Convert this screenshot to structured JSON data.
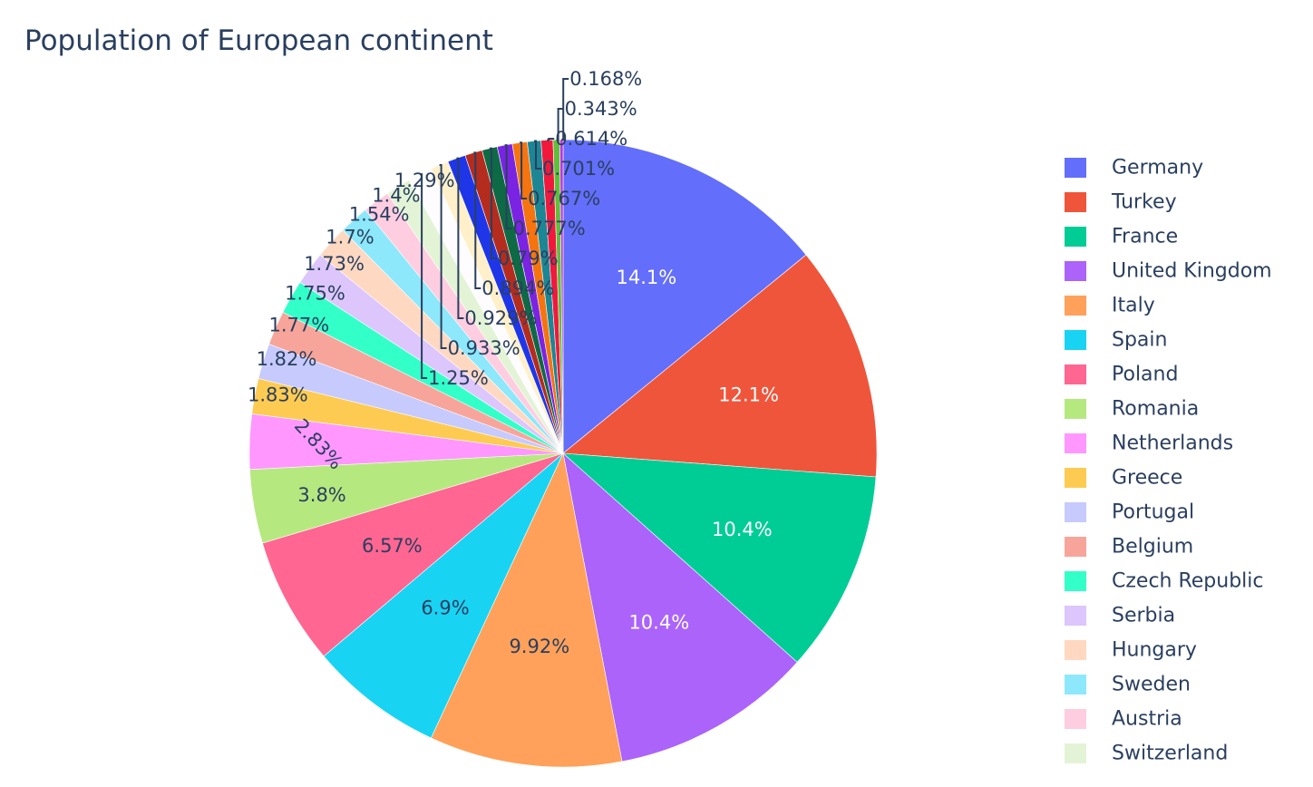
{
  "chart_data": {
    "type": "pie",
    "title": "Population of European continent",
    "sort_by_value": true,
    "slices": [
      {
        "label": "Germany",
        "percent": 14.1,
        "display": "14.1%",
        "color": "#636efa"
      },
      {
        "label": "Turkey",
        "percent": 12.1,
        "display": "12.1%",
        "color": "#ef553b"
      },
      {
        "label": "France",
        "percent": 10.4,
        "display": "10.4%",
        "color": "#00cc96"
      },
      {
        "label": "United Kingdom",
        "percent": 10.4,
        "display": "10.4%",
        "color": "#ab63fa"
      },
      {
        "label": "Italy",
        "percent": 9.92,
        "display": "9.92%",
        "color": "#ffa15a"
      },
      {
        "label": "Spain",
        "percent": 6.9,
        "display": "6.9%",
        "color": "#19d3f3"
      },
      {
        "label": "Poland",
        "percent": 6.57,
        "display": "6.57%",
        "color": "#ff6692"
      },
      {
        "label": "Romania",
        "percent": 3.8,
        "display": "3.8%",
        "color": "#b6e880"
      },
      {
        "label": "Netherlands",
        "percent": 2.83,
        "display": "2.83%",
        "color": "#ff97ff"
      },
      {
        "label": "Greece",
        "percent": 1.83,
        "display": "1.83%",
        "color": "#fecb52"
      },
      {
        "label": "Portugal",
        "percent": 1.82,
        "display": "1.82%",
        "color": "#c6cafd"
      },
      {
        "label": "Belgium",
        "percent": 1.77,
        "display": "1.77%",
        "color": "#f7a59a"
      },
      {
        "label": "Czech Republic",
        "percent": 1.75,
        "display": "1.75%",
        "color": "#33ffc9"
      },
      {
        "label": "Serbia",
        "percent": 1.73,
        "display": "1.73%",
        "color": "#dcc6fc"
      },
      {
        "label": "Hungary",
        "percent": 1.7,
        "display": "1.7%",
        "color": "#ffd8c2"
      },
      {
        "label": "Sweden",
        "percent": 1.54,
        "display": "1.54%",
        "color": "#8ce8fa"
      },
      {
        "label": "Austria",
        "percent": 1.4,
        "display": "1.4%",
        "color": "#ffcde0"
      },
      {
        "label": "Switzerland",
        "percent": 1.29,
        "display": "1.29%",
        "color": "#e3f4d6"
      },
      {
        "label": "",
        "percent": 1.25,
        "display": "1.25%",
        "color": "#fefcff"
      },
      {
        "label": "",
        "percent": 0.933,
        "display": "0.933%",
        "color": "#fff0c9"
      },
      {
        "label": "",
        "percent": 0.929,
        "display": "0.929%",
        "color": "#1f36e8"
      },
      {
        "label": "",
        "percent": 0.894,
        "display": "0.894%",
        "color": "#b42c1d"
      },
      {
        "label": "",
        "percent": 0.79,
        "display": "0.79%",
        "color": "#0e6a44"
      },
      {
        "label": "",
        "percent": 0.777,
        "display": "0.777%",
        "color": "#7b23e2"
      },
      {
        "label": "",
        "percent": 0.767,
        "display": "0.767%",
        "color": "#f5740f"
      },
      {
        "label": "",
        "percent": 0.701,
        "display": "0.701%",
        "color": "#1c8694"
      },
      {
        "label": "",
        "percent": 0.614,
        "display": "0.614%",
        "color": "#f0193c"
      },
      {
        "label": "",
        "percent": 0.343,
        "display": "0.343%",
        "color": "#5fbf3a"
      },
      {
        "label": "",
        "percent": 0.168,
        "display": "0.168%",
        "color": "#c430e0"
      }
    ],
    "legend_visible_count": 18,
    "legend_position": "right",
    "text_color_dark": "#2a3f5f",
    "text_color_light": "#ffffff"
  }
}
